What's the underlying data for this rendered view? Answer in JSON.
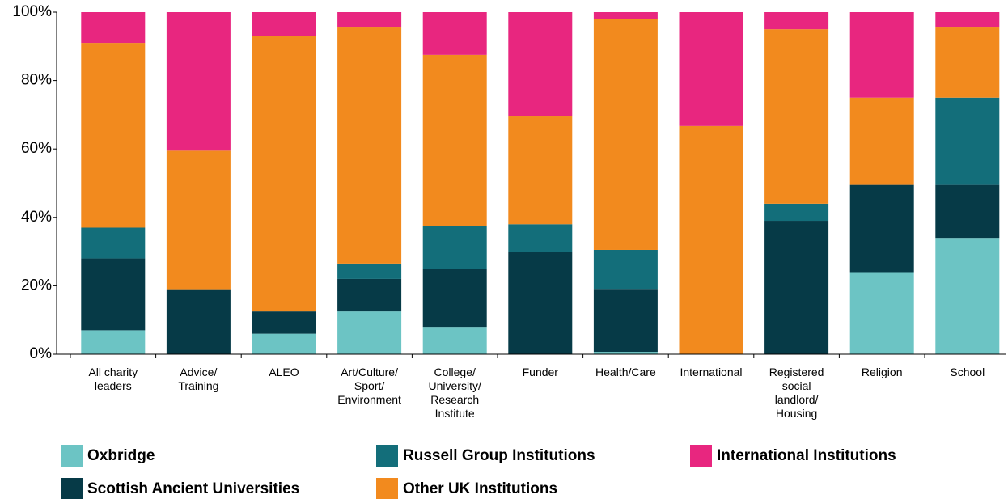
{
  "chart_data": {
    "type": "stacked_bar",
    "categories": [
      "All charity\nleaders",
      "Advice/\nTraining",
      "ALEO",
      "Art/Culture/\nSport/\nEnvironment",
      "College/\nUniversity/\nResearch\nInstitute",
      "Funder",
      "Health/Care",
      "International",
      "Registered\nsocial\nlandlord/\nHousing",
      "Religion",
      "School"
    ],
    "series": [
      {
        "name": "Oxbridge",
        "color": "#6cc4c4",
        "values": [
          7,
          0,
          6,
          12.5,
          8,
          0,
          0.7,
          0,
          0,
          24,
          34
        ]
      },
      {
        "name": "Scottish Ancient Universities",
        "color": "#063a47",
        "values": [
          21,
          19,
          6.5,
          9.5,
          17,
          30,
          18.4,
          0,
          39,
          25.5,
          15.5
        ]
      },
      {
        "name": "Russell Group Institutions",
        "color": "#136e7a",
        "values": [
          9,
          0,
          0,
          4.5,
          12.5,
          8,
          11.4,
          0,
          5,
          0,
          25.5
        ]
      },
      {
        "name": "Other UK Institutions",
        "color": "#f28a1e",
        "values": [
          54,
          40.5,
          80.5,
          69,
          50,
          31.5,
          67.4,
          66.7,
          51,
          25.5,
          20.5
        ]
      },
      {
        "name": "International Institutions",
        "color": "#e8267f",
        "values": [
          9,
          40.5,
          7,
          4.5,
          12.5,
          30.5,
          2.1,
          33.3,
          5,
          25,
          4.5
        ]
      }
    ],
    "ylim": [
      0,
      100
    ],
    "yticks": [
      {
        "value": 0,
        "label": "0%"
      },
      {
        "value": 20,
        "label": "20%"
      },
      {
        "value": 40,
        "label": "40%"
      },
      {
        "value": 60,
        "label": "60%"
      },
      {
        "value": 80,
        "label": "80%"
      },
      {
        "value": 100,
        "label": "100%"
      }
    ],
    "grid": false
  }
}
